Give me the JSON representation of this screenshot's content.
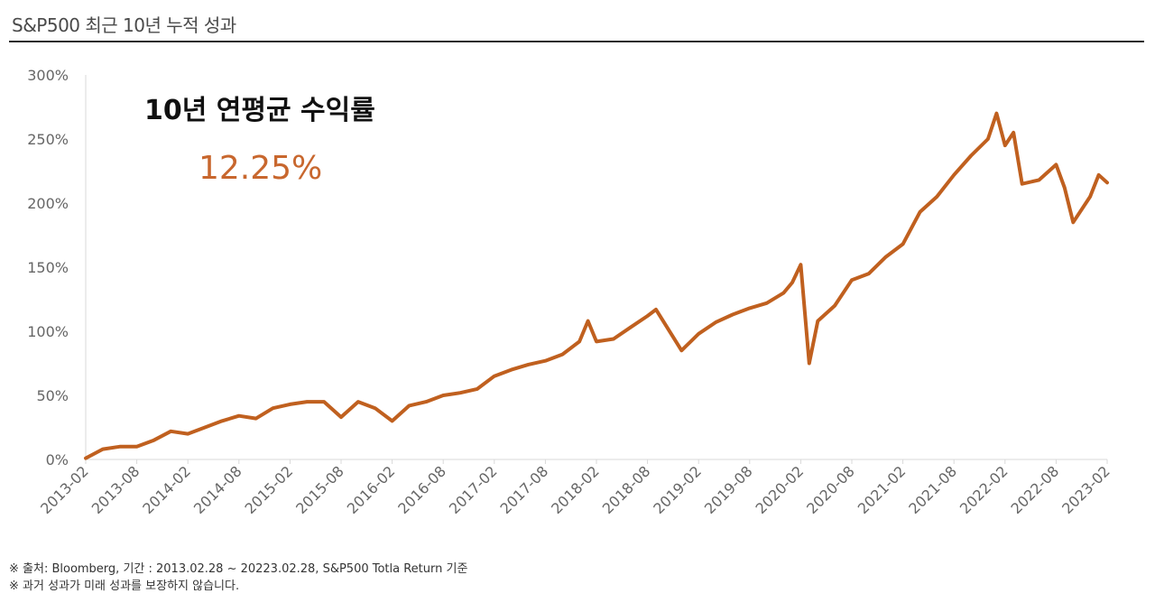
{
  "header": {
    "title": "S&P500 최근 10년 누적 성과"
  },
  "highlight": {
    "label": "10년 연평균 수익률",
    "value": "12.25%"
  },
  "footnotes": [
    "※ 출처: Bloomberg, 기간 : 2013.02.28 ~ 20223.02.28, S&P500 Totla Return 기준",
    "※ 과거 성과가 미래 성과를 보장하지 않습니다."
  ],
  "colors": {
    "line": "#c0601f",
    "accent": "#c8672e",
    "axis": "#d9d9d9"
  },
  "chart_data": {
    "type": "line",
    "title": "",
    "xlabel": "",
    "ylabel": "",
    "ylim": [
      0,
      300
    ],
    "yticks": [
      0,
      50,
      100,
      150,
      200,
      250,
      300
    ],
    "ytick_labels": [
      "0%",
      "50%",
      "100%",
      "150%",
      "200%",
      "250%",
      "300%"
    ],
    "xtick_labels": [
      "2013-02",
      "2013-08",
      "2014-02",
      "2014-08",
      "2015-02",
      "2015-08",
      "2016-02",
      "2016-08",
      "2017-02",
      "2017-08",
      "2018-02",
      "2018-08",
      "2019-02",
      "2019-08",
      "2020-02",
      "2020-08",
      "2021-02",
      "2021-08",
      "2022-02",
      "2022-08",
      "2023-02"
    ],
    "grid": false,
    "legend": "none",
    "series": [
      {
        "name": "",
        "x": [
          "2013-02",
          "2013-04",
          "2013-06",
          "2013-08",
          "2013-10",
          "2013-12",
          "2014-02",
          "2014-04",
          "2014-06",
          "2014-08",
          "2014-10",
          "2014-12",
          "2015-02",
          "2015-04",
          "2015-06",
          "2015-08",
          "2015-10",
          "2015-12",
          "2016-02",
          "2016-04",
          "2016-06",
          "2016-08",
          "2016-10",
          "2016-12",
          "2017-02",
          "2017-04",
          "2017-06",
          "2017-08",
          "2017-10",
          "2017-12",
          "2018-01",
          "2018-02",
          "2018-04",
          "2018-06",
          "2018-08",
          "2018-09",
          "2018-12",
          "2019-02",
          "2019-04",
          "2019-06",
          "2019-08",
          "2019-10",
          "2019-12",
          "2020-01",
          "2020-02",
          "2020-03",
          "2020-04",
          "2020-06",
          "2020-08",
          "2020-10",
          "2020-12",
          "2021-02",
          "2021-04",
          "2021-06",
          "2021-08",
          "2021-10",
          "2021-12",
          "2022-01",
          "2022-02",
          "2022-03",
          "2022-04",
          "2022-06",
          "2022-08",
          "2022-09",
          "2022-10",
          "2022-12",
          "2023-01",
          "2023-02"
        ],
        "values": [
          1,
          8,
          10,
          10,
          15,
          22,
          20,
          25,
          30,
          34,
          32,
          40,
          43,
          45,
          45,
          33,
          45,
          40,
          30,
          42,
          45,
          50,
          52,
          55,
          65,
          70,
          74,
          77,
          82,
          92,
          108,
          92,
          94,
          103,
          112,
          117,
          85,
          98,
          107,
          113,
          118,
          122,
          130,
          138,
          152,
          75,
          108,
          120,
          140,
          145,
          158,
          168,
          193,
          205,
          222,
          237,
          250,
          270,
          245,
          255,
          215,
          218,
          230,
          212,
          185,
          205,
          222,
          216
        ]
      }
    ]
  }
}
